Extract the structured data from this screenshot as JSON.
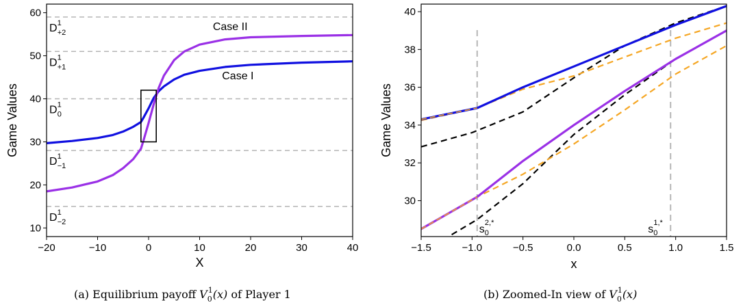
{
  "chart_data": [
    {
      "type": "line",
      "caption": {
        "prefix": "(a)  Equilibrium payoff ",
        "math_var": "V",
        "math_sub": "0",
        "math_sup": "1",
        "math_arg": "(x)",
        "suffix": " of Player 1"
      },
      "xlabel": "X",
      "ylabel": "Game Values",
      "xlim": [
        -20,
        40
      ],
      "ylim": [
        8,
        62
      ],
      "xticks": [
        -20,
        -10,
        0,
        10,
        20,
        30,
        40
      ],
      "yticks": [
        10,
        20,
        30,
        40,
        50,
        60
      ],
      "xtick_labels": [
        "−20",
        "−10",
        "0",
        "10",
        "20",
        "30",
        "40"
      ],
      "ytick_labels": [
        "10",
        "20",
        "30",
        "40",
        "50",
        "60"
      ],
      "hlines": [
        {
          "y": 59,
          "label_main": "D",
          "label_sup": "1",
          "label_sub": "+2"
        },
        {
          "y": 51,
          "label_main": "D",
          "label_sup": "1",
          "label_sub": "+1"
        },
        {
          "y": 40,
          "label_main": "D",
          "label_sup": "1",
          "label_sub": "0"
        },
        {
          "y": 28,
          "label_main": "D",
          "label_sup": "1",
          "label_sub": "−1"
        },
        {
          "y": 15,
          "label_main": "D",
          "label_sup": "1",
          "label_sub": "−2"
        }
      ],
      "annotations": [
        {
          "text": "Case II",
          "x": 16,
          "y": 56
        },
        {
          "text": "Case I",
          "x": 17.5,
          "y": 44.5
        }
      ],
      "rect": {
        "x0": -1.5,
        "x1": 1.5,
        "y0": 30,
        "y1": 42
      },
      "series": [
        {
          "color": "#1010e0",
          "x": [
            -20,
            -15,
            -10,
            -7,
            -5,
            -3,
            -1.5,
            -1,
            0,
            1,
            2,
            3,
            5,
            7,
            10,
            15,
            20,
            30,
            40
          ],
          "y": [
            29.7,
            30.2,
            30.9,
            31.6,
            32.4,
            33.5,
            34.6,
            35.6,
            37.8,
            40.2,
            41.8,
            42.9,
            44.5,
            45.6,
            46.5,
            47.4,
            47.9,
            48.4,
            48.7
          ]
        },
        {
          "color": "#9a30e6",
          "x": [
            -20,
            -15,
            -10,
            -7,
            -5,
            -3,
            -1.5,
            -1,
            0,
            1,
            2,
            3,
            5,
            7,
            10,
            15,
            20,
            30,
            40
          ],
          "y": [
            18.5,
            19.4,
            20.8,
            22.3,
            23.9,
            26.0,
            28.4,
            30.3,
            34.4,
            38.7,
            42.6,
            45.4,
            49.0,
            51.0,
            52.6,
            53.8,
            54.3,
            54.6,
            54.8
          ]
        }
      ]
    },
    {
      "type": "line",
      "caption": {
        "prefix": "(b)  Zoomed-In view of ",
        "math_var": "V",
        "math_sub": "0",
        "math_sup": "1",
        "math_arg": "(x)",
        "suffix": ""
      },
      "xlabel": "x",
      "ylabel": "Game Values",
      "xlim": [
        -1.5,
        1.5
      ],
      "ylim": [
        28.1,
        40.4
      ],
      "xticks": [
        -1.5,
        -1.0,
        -0.5,
        0.0,
        0.5,
        1.0,
        1.5
      ],
      "yticks": [
        30,
        32,
        34,
        36,
        38,
        40
      ],
      "xtick_labels": [
        "−1.5",
        "−1.0",
        "−0.5",
        "0.0",
        "0.5",
        "1.0",
        "1.5"
      ],
      "ytick_labels": [
        "30",
        "32",
        "34",
        "36",
        "38",
        "40"
      ],
      "vlines": [
        {
          "x": -0.95,
          "label_main": "s",
          "label_sub": "0",
          "label_sup": "2,*"
        },
        {
          "x": 0.95,
          "label_main": "s",
          "label_sub": "0",
          "label_sup": "1,*"
        }
      ],
      "series": [
        {
          "style": "dashed",
          "color": "#000000",
          "x": [
            -1.5,
            -1.0,
            -0.5,
            0.0,
            0.5,
            1.0,
            1.5
          ],
          "y": [
            32.85,
            33.6,
            34.7,
            36.5,
            38.2,
            39.4,
            40.3
          ]
        },
        {
          "style": "dashed",
          "color": "#000000",
          "x": [
            -1.2,
            -0.95,
            -0.5,
            0.0,
            0.5,
            1.0,
            1.5
          ],
          "y": [
            28.2,
            29.0,
            30.9,
            33.5,
            35.6,
            37.5,
            39.0
          ]
        },
        {
          "style": "dashed",
          "color": "#f5a623",
          "x": [
            -1.5,
            -0.95,
            -0.5,
            0.0,
            0.5,
            1.0,
            1.5
          ],
          "y": [
            34.25,
            34.9,
            35.9,
            36.6,
            37.6,
            38.6,
            39.4
          ]
        },
        {
          "style": "dashed",
          "color": "#f5a623",
          "x": [
            -1.5,
            -0.95,
            -0.5,
            0.0,
            0.5,
            1.0,
            1.5
          ],
          "y": [
            28.5,
            30.2,
            31.4,
            33.0,
            34.8,
            36.7,
            38.2
          ]
        },
        {
          "style": "solid",
          "color": "#1010e0",
          "x": [
            -1.5,
            -0.95,
            -0.5,
            0.0,
            0.5,
            1.0,
            1.5
          ],
          "y": [
            34.3,
            34.9,
            36.0,
            37.1,
            38.2,
            39.3,
            40.3
          ]
        },
        {
          "style": "solid",
          "color": "#9a30e6",
          "x": [
            -1.5,
            -0.95,
            -0.5,
            0.0,
            0.5,
            1.0,
            1.5
          ],
          "y": [
            28.5,
            30.2,
            32.1,
            34.0,
            35.8,
            37.5,
            39.0
          ]
        },
        {
          "style": "dashed-overlay",
          "color": "#f5a623",
          "x": [
            -1.5,
            -0.95
          ],
          "y": [
            34.3,
            34.9
          ]
        },
        {
          "style": "dashed-overlay",
          "color": "#f5a623",
          "x": [
            -1.5,
            -0.95
          ],
          "y": [
            28.5,
            30.2
          ]
        }
      ]
    }
  ]
}
